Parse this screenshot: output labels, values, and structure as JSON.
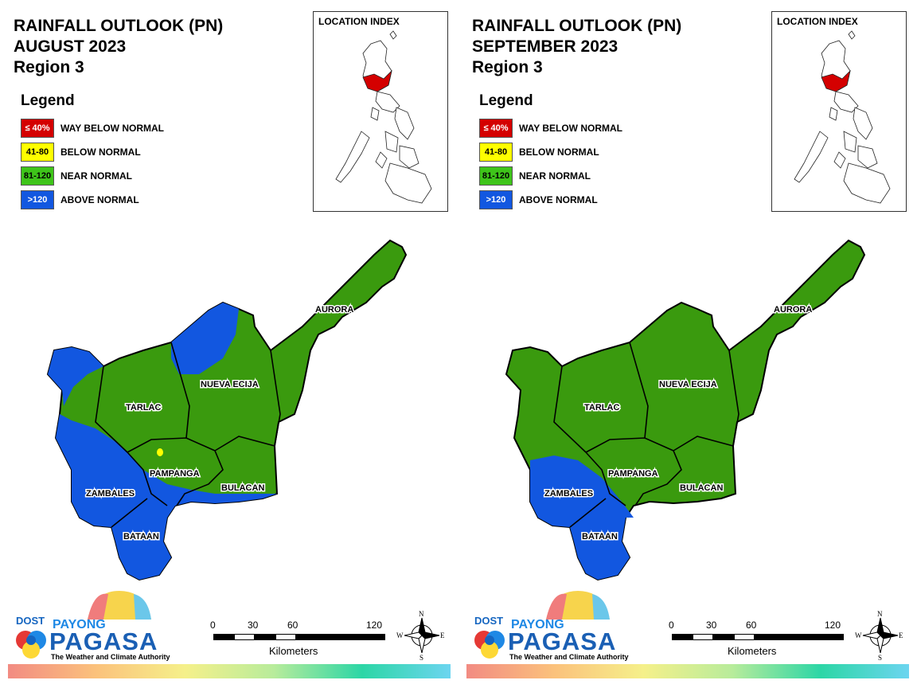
{
  "panels": [
    {
      "title_lines": [
        "RAINFALL OUTLOOK (PN)",
        "AUGUST 2023",
        "Region 3"
      ],
      "dominant_fill": "#3a9a0e",
      "provinces": [
        "AURORA",
        "NUEVA ECIJA",
        "TARLAC",
        "PAMPANGA",
        "BULACAN",
        "ZAMBALES",
        "BATAAN"
      ]
    },
    {
      "title_lines": [
        "RAINFALL OUTLOOK (PN)",
        "SEPTEMBER 2023",
        "Region 3"
      ],
      "dominant_fill": "#3a9a0e",
      "provinces": [
        "AURORA",
        "NUEVA ECIJA",
        "TARLAC",
        "PAMPANGA",
        "BULACAN",
        "ZAMBALES",
        "BATAAN"
      ]
    }
  ],
  "legend": {
    "title": "Legend",
    "items": [
      {
        "swatch_text": "≤ 40%",
        "label": "WAY BELOW NORMAL",
        "color": "#d40000",
        "text_color": "#ffffff"
      },
      {
        "swatch_text": "41-80",
        "label": "BELOW NORMAL",
        "color": "#ffff00",
        "text_color": "#000000"
      },
      {
        "swatch_text": "81-120",
        "label": "NEAR NORMAL",
        "color": "#3ec41a",
        "text_color": "#000000"
      },
      {
        "swatch_text": ">120",
        "label": "ABOVE NORMAL",
        "color": "#1257e0",
        "text_color": "#ffffff"
      }
    ]
  },
  "location_index": {
    "title": "LOCATION INDEX",
    "highlight_color": "#d40000"
  },
  "colors": {
    "near_normal": "#3a9a0e",
    "above_normal": "#1257e0",
    "below_normal": "#ffff00"
  },
  "logo": {
    "dost": "DOST",
    "payong": "PAYONG",
    "pagasa": "PAGASA",
    "tagline": "The Weather and Climate Authority"
  },
  "scale": {
    "ticks": [
      "0",
      "30",
      "60",
      "120"
    ],
    "units": "Kilometers"
  },
  "compass": {
    "n": "N",
    "s": "S",
    "e": "E",
    "w": "W"
  }
}
